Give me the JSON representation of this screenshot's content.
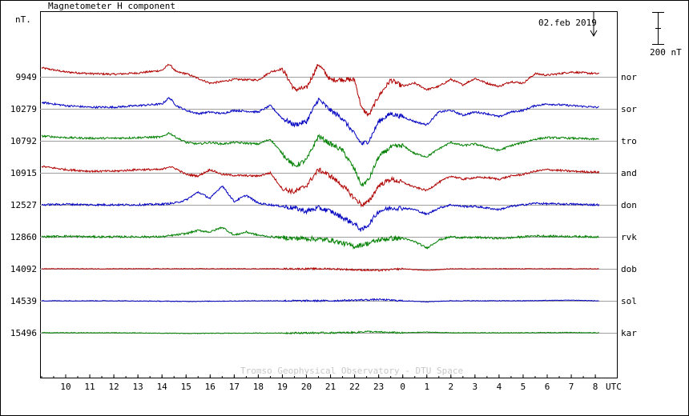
{
  "chart_data": {
    "type": "line",
    "title": "Magnetometer H component",
    "ylabel_unit": "nT.",
    "date_label": "02.feb 2019",
    "scale_bar_label": "200 nT",
    "scale_bar_nT": 200,
    "footer": "Tromso Geophysical Observatory - DTU Space",
    "x_unit_label": "UTC",
    "x_ticks": [
      "10",
      "11",
      "12",
      "13",
      "14",
      "15",
      "16",
      "17",
      "18",
      "19",
      "20",
      "21",
      "22",
      "23",
      "0",
      "1",
      "2",
      "3",
      "4",
      "5",
      "6",
      "7",
      "8"
    ],
    "x_range_hours_utc": [
      "09:00 01.feb",
      "08:10 02.feb"
    ],
    "grid": "horizontal baselines per station",
    "series": [
      {
        "station": "nor",
        "baseline_nT": "9949",
        "color": "#b00000",
        "profile": [
          [
            9,
            28
          ],
          [
            10,
            15
          ],
          [
            11,
            10
          ],
          [
            12,
            8
          ],
          [
            13,
            12
          ],
          [
            14,
            20
          ],
          [
            14.3,
            40
          ],
          [
            14.6,
            15
          ],
          [
            15,
            10
          ],
          [
            15.5,
            -5
          ],
          [
            16,
            -20
          ],
          [
            16.5,
            -15
          ],
          [
            17,
            -8
          ],
          [
            18,
            -10
          ],
          [
            18.5,
            15
          ],
          [
            19,
            25
          ],
          [
            19.5,
            -40
          ],
          [
            20,
            -35
          ],
          [
            20.5,
            40
          ],
          [
            21,
            -10
          ],
          [
            21.5,
            -8
          ],
          [
            22,
            -10
          ],
          [
            22.3,
            -100
          ],
          [
            22.6,
            -120
          ],
          [
            23,
            -60
          ],
          [
            23.5,
            -10
          ],
          [
            24,
            -30
          ],
          [
            24.5,
            -20
          ],
          [
            25,
            -40
          ],
          [
            25.5,
            -30
          ],
          [
            26,
            -8
          ],
          [
            26.5,
            -25
          ],
          [
            27,
            -5
          ],
          [
            27.5,
            -20
          ],
          [
            28,
            -30
          ],
          [
            28.5,
            -15
          ],
          [
            29,
            -20
          ],
          [
            29.5,
            10
          ],
          [
            30,
            5
          ],
          [
            31,
            15
          ],
          [
            32,
            10
          ]
        ]
      },
      {
        "station": "sor",
        "baseline_nT": "10279",
        "color": "#0000c0",
        "profile": [
          [
            9,
            20
          ],
          [
            10,
            10
          ],
          [
            11,
            5
          ],
          [
            12,
            5
          ],
          [
            13,
            10
          ],
          [
            14,
            15
          ],
          [
            14.3,
            35
          ],
          [
            14.6,
            10
          ],
          [
            15,
            -5
          ],
          [
            15.5,
            -15
          ],
          [
            16,
            -10
          ],
          [
            16.5,
            -15
          ],
          [
            17,
            -5
          ],
          [
            18,
            -10
          ],
          [
            18.5,
            10
          ],
          [
            19,
            -30
          ],
          [
            19.5,
            -50
          ],
          [
            20,
            -40
          ],
          [
            20.5,
            30
          ],
          [
            21,
            -5
          ],
          [
            21.5,
            -30
          ],
          [
            22,
            -80
          ],
          [
            22.3,
            -110
          ],
          [
            22.6,
            -100
          ],
          [
            23,
            -40
          ],
          [
            23.5,
            -15
          ],
          [
            24,
            -25
          ],
          [
            24.5,
            -40
          ],
          [
            25,
            -50
          ],
          [
            25.5,
            -10
          ],
          [
            26,
            -5
          ],
          [
            26.5,
            -20
          ],
          [
            27,
            -10
          ],
          [
            27.5,
            -15
          ],
          [
            28,
            -25
          ],
          [
            28.5,
            -10
          ],
          [
            29,
            -5
          ],
          [
            29.5,
            10
          ],
          [
            30,
            15
          ],
          [
            31,
            10
          ],
          [
            32,
            5
          ]
        ]
      },
      {
        "station": "tro",
        "baseline_nT": "10792",
        "color": "#008000",
        "profile": [
          [
            9,
            15
          ],
          [
            10,
            10
          ],
          [
            11,
            8
          ],
          [
            12,
            8
          ],
          [
            13,
            10
          ],
          [
            14,
            12
          ],
          [
            14.3,
            25
          ],
          [
            14.6,
            10
          ],
          [
            15,
            -5
          ],
          [
            15.5,
            -10
          ],
          [
            16,
            -5
          ],
          [
            16.5,
            -10
          ],
          [
            17,
            -5
          ],
          [
            18,
            -10
          ],
          [
            18.5,
            5
          ],
          [
            19,
            -40
          ],
          [
            19.5,
            -80
          ],
          [
            20,
            -60
          ],
          [
            20.5,
            15
          ],
          [
            21,
            -10
          ],
          [
            21.5,
            -30
          ],
          [
            22,
            -90
          ],
          [
            22.3,
            -140
          ],
          [
            22.6,
            -120
          ],
          [
            23,
            -50
          ],
          [
            23.5,
            -20
          ],
          [
            24,
            -15
          ],
          [
            24.5,
            -40
          ],
          [
            25,
            -50
          ],
          [
            25.5,
            -25
          ],
          [
            26,
            -5
          ],
          [
            26.5,
            -15
          ],
          [
            27,
            -10
          ],
          [
            27.5,
            -20
          ],
          [
            28,
            -30
          ],
          [
            28.5,
            -15
          ],
          [
            29,
            -5
          ],
          [
            29.5,
            5
          ],
          [
            30,
            10
          ],
          [
            31,
            8
          ],
          [
            32,
            5
          ]
        ]
      },
      {
        "station": "and",
        "baseline_nT": "10915",
        "color": "#b00000",
        "profile": [
          [
            9,
            20
          ],
          [
            10,
            10
          ],
          [
            11,
            5
          ],
          [
            12,
            5
          ],
          [
            13,
            10
          ],
          [
            14,
            10
          ],
          [
            14.3,
            20
          ],
          [
            14.6,
            12
          ],
          [
            15,
            -5
          ],
          [
            15.5,
            -10
          ],
          [
            16,
            10
          ],
          [
            16.5,
            -5
          ],
          [
            17,
            -8
          ],
          [
            18,
            -10
          ],
          [
            18.5,
            0
          ],
          [
            19,
            -50
          ],
          [
            19.5,
            -60
          ],
          [
            20,
            -40
          ],
          [
            20.5,
            10
          ],
          [
            21,
            -10
          ],
          [
            21.5,
            -40
          ],
          [
            22,
            -80
          ],
          [
            22.3,
            -100
          ],
          [
            22.6,
            -90
          ],
          [
            23,
            -40
          ],
          [
            23.5,
            -20
          ],
          [
            24,
            -30
          ],
          [
            24.5,
            -45
          ],
          [
            25,
            -55
          ],
          [
            25.5,
            -30
          ],
          [
            26,
            -10
          ],
          [
            26.5,
            -20
          ],
          [
            27,
            -15
          ],
          [
            27.5,
            -15
          ],
          [
            28,
            -20
          ],
          [
            28.5,
            -10
          ],
          [
            29,
            -5
          ],
          [
            29.5,
            5
          ],
          [
            30,
            10
          ],
          [
            31,
            5
          ],
          [
            32,
            2
          ]
        ]
      },
      {
        "station": "don",
        "baseline_nT": "12527",
        "color": "#0000c0",
        "profile": [
          [
            9,
            0
          ],
          [
            10,
            2
          ],
          [
            11,
            0
          ],
          [
            12,
            0
          ],
          [
            13,
            0
          ],
          [
            14,
            2
          ],
          [
            14.5,
            5
          ],
          [
            15,
            15
          ],
          [
            15.5,
            40
          ],
          [
            16,
            20
          ],
          [
            16.5,
            60
          ],
          [
            17,
            10
          ],
          [
            17.5,
            30
          ],
          [
            18,
            5
          ],
          [
            18.5,
            0
          ],
          [
            19,
            -5
          ],
          [
            19.5,
            -10
          ],
          [
            20,
            -20
          ],
          [
            20.5,
            -10
          ],
          [
            21,
            -20
          ],
          [
            21.5,
            -40
          ],
          [
            22,
            -60
          ],
          [
            22.3,
            -80
          ],
          [
            22.6,
            -60
          ],
          [
            23,
            -20
          ],
          [
            23.5,
            -10
          ],
          [
            24,
            -10
          ],
          [
            24.5,
            -15
          ],
          [
            25,
            -30
          ],
          [
            25.5,
            -10
          ],
          [
            26,
            0
          ],
          [
            26.5,
            -5
          ],
          [
            27,
            -5
          ],
          [
            27.5,
            -10
          ],
          [
            28,
            -15
          ],
          [
            28.5,
            -5
          ],
          [
            29,
            0
          ],
          [
            29.5,
            5
          ],
          [
            30,
            3
          ],
          [
            31,
            2
          ],
          [
            32,
            0
          ]
        ]
      },
      {
        "station": "rvk",
        "baseline_nT": "12860",
        "color": "#008000",
        "profile": [
          [
            9,
            0
          ],
          [
            10,
            2
          ],
          [
            11,
            0
          ],
          [
            12,
            0
          ],
          [
            13,
            0
          ],
          [
            14,
            0
          ],
          [
            14.5,
            5
          ],
          [
            15,
            10
          ],
          [
            15.5,
            20
          ],
          [
            16,
            15
          ],
          [
            16.5,
            30
          ],
          [
            17,
            5
          ],
          [
            17.5,
            15
          ],
          [
            18,
            5
          ],
          [
            18.5,
            0
          ],
          [
            19,
            -2
          ],
          [
            19.5,
            -5
          ],
          [
            20,
            -5
          ],
          [
            20.5,
            -8
          ],
          [
            21,
            -10
          ],
          [
            21.5,
            -20
          ],
          [
            22,
            -30
          ],
          [
            22.3,
            -25
          ],
          [
            22.6,
            -20
          ],
          [
            23,
            -10
          ],
          [
            23.5,
            -5
          ],
          [
            24,
            -5
          ],
          [
            24.5,
            -15
          ],
          [
            25,
            -35
          ],
          [
            25.5,
            -10
          ],
          [
            26,
            0
          ],
          [
            26.5,
            -3
          ],
          [
            27,
            -2
          ],
          [
            27.5,
            -3
          ],
          [
            28,
            -5
          ],
          [
            28.5,
            -3
          ],
          [
            29,
            0
          ],
          [
            29.5,
            3
          ],
          [
            30,
            2
          ],
          [
            31,
            1
          ],
          [
            32,
            0
          ]
        ]
      },
      {
        "station": "dob",
        "baseline_nT": "14092",
        "color": "#b00000",
        "profile": [
          [
            9,
            0
          ],
          [
            12,
            0
          ],
          [
            15,
            0
          ],
          [
            18,
            0
          ],
          [
            21,
            0
          ],
          [
            22,
            -3
          ],
          [
            23,
            -5
          ],
          [
            24,
            0
          ],
          [
            25,
            -5
          ],
          [
            26,
            0
          ],
          [
            29,
            0
          ],
          [
            32,
            0
          ]
        ]
      },
      {
        "station": "sol",
        "baseline_nT": "14539",
        "color": "#0000c0",
        "profile": [
          [
            9,
            0
          ],
          [
            12,
            0
          ],
          [
            15,
            -2
          ],
          [
            18,
            0
          ],
          [
            21,
            0
          ],
          [
            22,
            2
          ],
          [
            23,
            4
          ],
          [
            24,
            0
          ],
          [
            25,
            -3
          ],
          [
            26,
            0
          ],
          [
            29,
            0
          ],
          [
            31,
            2
          ],
          [
            32,
            0
          ]
        ]
      },
      {
        "station": "kar",
        "baseline_nT": "15496",
        "color": "#008000",
        "profile": [
          [
            9,
            0
          ],
          [
            12,
            0
          ],
          [
            15,
            -2
          ],
          [
            18,
            -1
          ],
          [
            21,
            0
          ],
          [
            22,
            1
          ],
          [
            22.5,
            4
          ],
          [
            23,
            2
          ],
          [
            24,
            0
          ],
          [
            25,
            2
          ],
          [
            26,
            0
          ],
          [
            29,
            0
          ],
          [
            31,
            1
          ],
          [
            32,
            0
          ]
        ]
      }
    ]
  }
}
